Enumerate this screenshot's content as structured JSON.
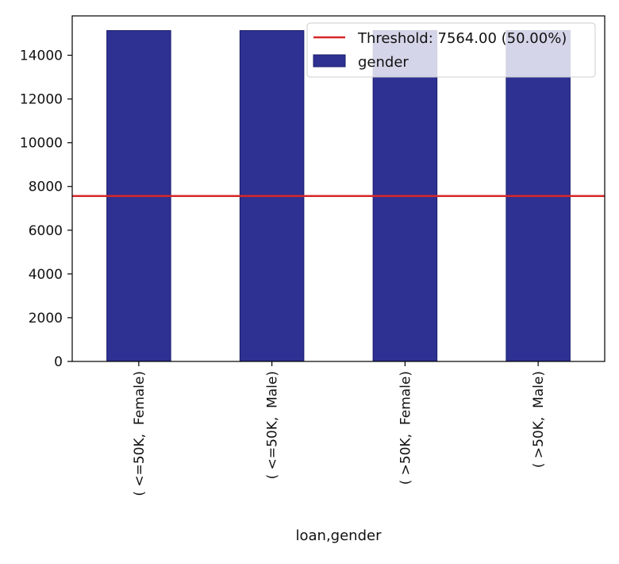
{
  "chart_data": {
    "type": "bar",
    "categories": [
      "( <=50K,  Female)",
      "( <=50K,  Male)",
      "( >50K,  Female)",
      "( >50K,  Male)"
    ],
    "series": [
      {
        "name": "gender",
        "values": [
          15128,
          15128,
          15128,
          15128
        ],
        "color": "#2e3192"
      }
    ],
    "threshold": {
      "value": 7564,
      "label": "Threshold: 7564.00 (50.00%)",
      "color": "#d62728"
    },
    "xlabel": "loan,gender",
    "ylabel": "",
    "ylim": [
      0,
      15800
    ],
    "yticks": [
      0,
      2000,
      4000,
      6000,
      8000,
      10000,
      12000,
      14000
    ],
    "grid": false,
    "legend_position": "top-right"
  }
}
